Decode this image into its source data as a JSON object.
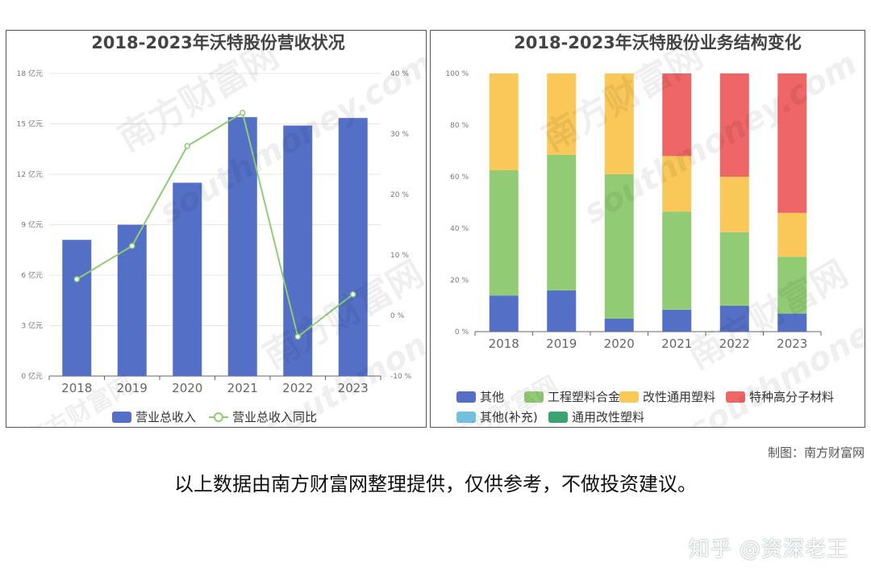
{
  "chart_data": [
    {
      "type": "bar",
      "title": "2018-2023年沃特股份营收状况",
      "categories": [
        "2018",
        "2019",
        "2020",
        "2021",
        "2022",
        "2023"
      ],
      "series": [
        {
          "name": "营业总收入",
          "type": "bar",
          "axis": "left",
          "values": [
            8.1,
            9.0,
            11.5,
            15.4,
            14.9,
            15.35
          ]
        },
        {
          "name": "营业总收入同比",
          "type": "line",
          "axis": "right",
          "values": [
            6,
            11.5,
            28,
            33.5,
            -3.5,
            3.5
          ]
        }
      ],
      "y_left": {
        "ticks": [
          "0 亿元",
          "3 亿元",
          "6 亿元",
          "9 亿元",
          "12 亿元",
          "15 亿元",
          "18 亿元"
        ],
        "ylim": [
          0,
          18
        ]
      },
      "y_right": {
        "ticks": [
          "-10 %",
          "0 %",
          "10 %",
          "20 %",
          "30 %",
          "40 %"
        ],
        "ylim": [
          -10,
          40
        ]
      },
      "legend_position": "bottom",
      "colors": {
        "bar": "#5470c6",
        "line": "#91cc75"
      }
    },
    {
      "type": "bar",
      "stacked": true,
      "title": "2018-2023年沃特股份业务结构变化",
      "categories": [
        "2018",
        "2019",
        "2020",
        "2021",
        "2022",
        "2023"
      ],
      "series": [
        {
          "name": "其他",
          "color": "#5470c6",
          "values": [
            14,
            16,
            5,
            8.5,
            10,
            7
          ]
        },
        {
          "name": "工程塑料合金",
          "color": "#91cc75",
          "values": [
            48.5,
            52.5,
            56,
            38,
            28.5,
            22
          ]
        },
        {
          "name": "改性通用塑料",
          "color": "#fac858",
          "values": [
            37.5,
            31.5,
            39,
            21.5,
            21.5,
            17
          ]
        },
        {
          "name": "特种高分子材料",
          "color": "#ee6666",
          "values": [
            0,
            0,
            0,
            32,
            40,
            54
          ]
        },
        {
          "name": "其他(补充)",
          "color": "#73c0de",
          "values": [
            0,
            0,
            0,
            0,
            0,
            0
          ]
        },
        {
          "name": "通用改性塑料",
          "color": "#3ba272",
          "values": [
            0,
            0,
            0,
            0,
            0,
            0
          ]
        }
      ],
      "y": {
        "ticks": [
          "0 %",
          "20 %",
          "40 %",
          "60 %",
          "80 %",
          "100 %"
        ],
        "ylim": [
          0,
          100
        ]
      },
      "legend_position": "bottom"
    }
  ],
  "source_credit": "制图：南方财富网",
  "disclaimer": "以上数据由南方财富网整理提供，仅供参考，不做投资建议。",
  "watermark": {
    "cn": "南方财富网",
    "en": "southmoney.com"
  },
  "zhihu_mark": "知乎 @资深老王"
}
